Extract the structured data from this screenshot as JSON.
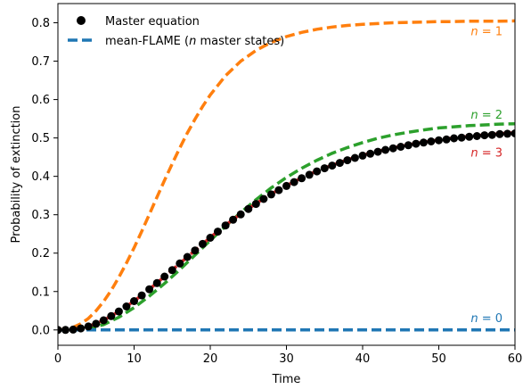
{
  "chart_data": {
    "type": "line",
    "xlabel": "Time",
    "ylabel": "Probability of extinction",
    "xlim": [
      0,
      60
    ],
    "ylim": [
      -0.04,
      0.85
    ],
    "xticks": [
      0,
      10,
      20,
      30,
      40,
      50,
      60
    ],
    "yticks": [
      0.0,
      0.1,
      0.2,
      0.3,
      0.4,
      0.5,
      0.6,
      0.7,
      0.8
    ],
    "ytick_labels": [
      "0.0",
      "0.1",
      "0.2",
      "0.3",
      "0.4",
      "0.5",
      "0.6",
      "0.7",
      "0.8"
    ],
    "grid": false,
    "legend": {
      "position": "top-left",
      "entries": [
        {
          "label": "Master equation",
          "style": "markers",
          "color": "#000000"
        },
        {
          "label": "mean-FLAME (",
          "label_italic": "n",
          "label_end": " master states)",
          "style": "dashed",
          "color": "#1f77b4"
        }
      ]
    },
    "master_equation": {
      "marker": "circle",
      "color": "#000000",
      "x": [
        0,
        1,
        2,
        3,
        4,
        5,
        6,
        7,
        8,
        9,
        10,
        11,
        12,
        13,
        14,
        15,
        16,
        17,
        18,
        19,
        20,
        21,
        22,
        23,
        24,
        25,
        26,
        27,
        28,
        29,
        30,
        31,
        32,
        33,
        34,
        35,
        36,
        37,
        38,
        39,
        40,
        41,
        42,
        43,
        44,
        45,
        46,
        47,
        48,
        49,
        50,
        51,
        52,
        53,
        54,
        55,
        56,
        57,
        58,
        59,
        60
      ],
      "y": [
        0.0,
        0.0,
        0.001,
        0.004,
        0.009,
        0.016,
        0.025,
        0.036,
        0.048,
        0.061,
        0.075,
        0.09,
        0.106,
        0.122,
        0.139,
        0.156,
        0.173,
        0.19,
        0.207,
        0.224,
        0.24,
        0.256,
        0.272,
        0.287,
        0.301,
        0.315,
        0.328,
        0.341,
        0.353,
        0.364,
        0.375,
        0.385,
        0.395,
        0.404,
        0.413,
        0.421,
        0.428,
        0.435,
        0.442,
        0.448,
        0.454,
        0.459,
        0.464,
        0.469,
        0.473,
        0.477,
        0.481,
        0.485,
        0.488,
        0.491,
        0.494,
        0.496,
        0.499,
        0.501,
        0.503,
        0.505,
        0.507,
        0.508,
        0.51,
        0.511,
        0.512
      ]
    },
    "series": [
      {
        "n": "0",
        "color": "#1f77b4",
        "x": [
          0,
          60
        ],
        "y": [
          0.0,
          0.0
        ],
        "label_prefix": "n",
        "label_suffix": " = 0",
        "label_at": [
          54.2,
          0.02
        ]
      },
      {
        "n": "1",
        "color": "#ff7f0e",
        "x": [
          0,
          1,
          2,
          3,
          4,
          5,
          6,
          7,
          8,
          9,
          10,
          11,
          12,
          13,
          14,
          15,
          16,
          17,
          18,
          19,
          20,
          22,
          24,
          26,
          28,
          30,
          32,
          34,
          36,
          38,
          40,
          42,
          44,
          46,
          48,
          50,
          52,
          54,
          56,
          58,
          60
        ],
        "y": [
          0.0,
          0.002,
          0.007,
          0.016,
          0.03,
          0.05,
          0.074,
          0.103,
          0.137,
          0.174,
          0.214,
          0.257,
          0.301,
          0.346,
          0.39,
          0.433,
          0.474,
          0.513,
          0.549,
          0.582,
          0.612,
          0.662,
          0.7,
          0.728,
          0.749,
          0.764,
          0.775,
          0.783,
          0.789,
          0.793,
          0.796,
          0.798,
          0.8,
          0.801,
          0.802,
          0.803,
          0.803,
          0.804,
          0.804,
          0.804,
          0.805
        ],
        "label_prefix": "n",
        "label_suffix": " = 1",
        "label_at": [
          54.2,
          0.768
        ]
      },
      {
        "n": "2",
        "color": "#2ca02c",
        "x": [
          0,
          2,
          4,
          6,
          8,
          10,
          12,
          14,
          16,
          18,
          20,
          22,
          24,
          26,
          28,
          30,
          32,
          34,
          36,
          38,
          40,
          42,
          44,
          46,
          48,
          50,
          52,
          54,
          56,
          58,
          60
        ],
        "y": [
          0.0,
          0.0,
          0.003,
          0.014,
          0.033,
          0.058,
          0.088,
          0.121,
          0.157,
          0.195,
          0.233,
          0.27,
          0.306,
          0.339,
          0.37,
          0.397,
          0.421,
          0.442,
          0.46,
          0.475,
          0.488,
          0.499,
          0.508,
          0.515,
          0.521,
          0.526,
          0.529,
          0.532,
          0.534,
          0.536,
          0.537
        ],
        "label_prefix": "n",
        "label_suffix": " = 2",
        "label_at": [
          54.2,
          0.55
        ]
      },
      {
        "n": "3",
        "color": "#d62728",
        "x": [
          0,
          2,
          4,
          6,
          8,
          10,
          12,
          14,
          16,
          18,
          20,
          22,
          24,
          26,
          28,
          30,
          32,
          34,
          36,
          38,
          40,
          42,
          44,
          46,
          48,
          50,
          52,
          54,
          56,
          58,
          60
        ],
        "y": [
          0.0,
          0.001,
          0.009,
          0.025,
          0.048,
          0.075,
          0.106,
          0.139,
          0.173,
          0.207,
          0.241,
          0.273,
          0.302,
          0.329,
          0.354,
          0.376,
          0.396,
          0.414,
          0.429,
          0.443,
          0.455,
          0.465,
          0.474,
          0.482,
          0.489,
          0.495,
          0.5,
          0.504,
          0.508,
          0.511,
          0.514
        ],
        "label_prefix": "n",
        "label_suffix": " = 3",
        "label_at": [
          54.2,
          0.452
        ]
      }
    ]
  }
}
